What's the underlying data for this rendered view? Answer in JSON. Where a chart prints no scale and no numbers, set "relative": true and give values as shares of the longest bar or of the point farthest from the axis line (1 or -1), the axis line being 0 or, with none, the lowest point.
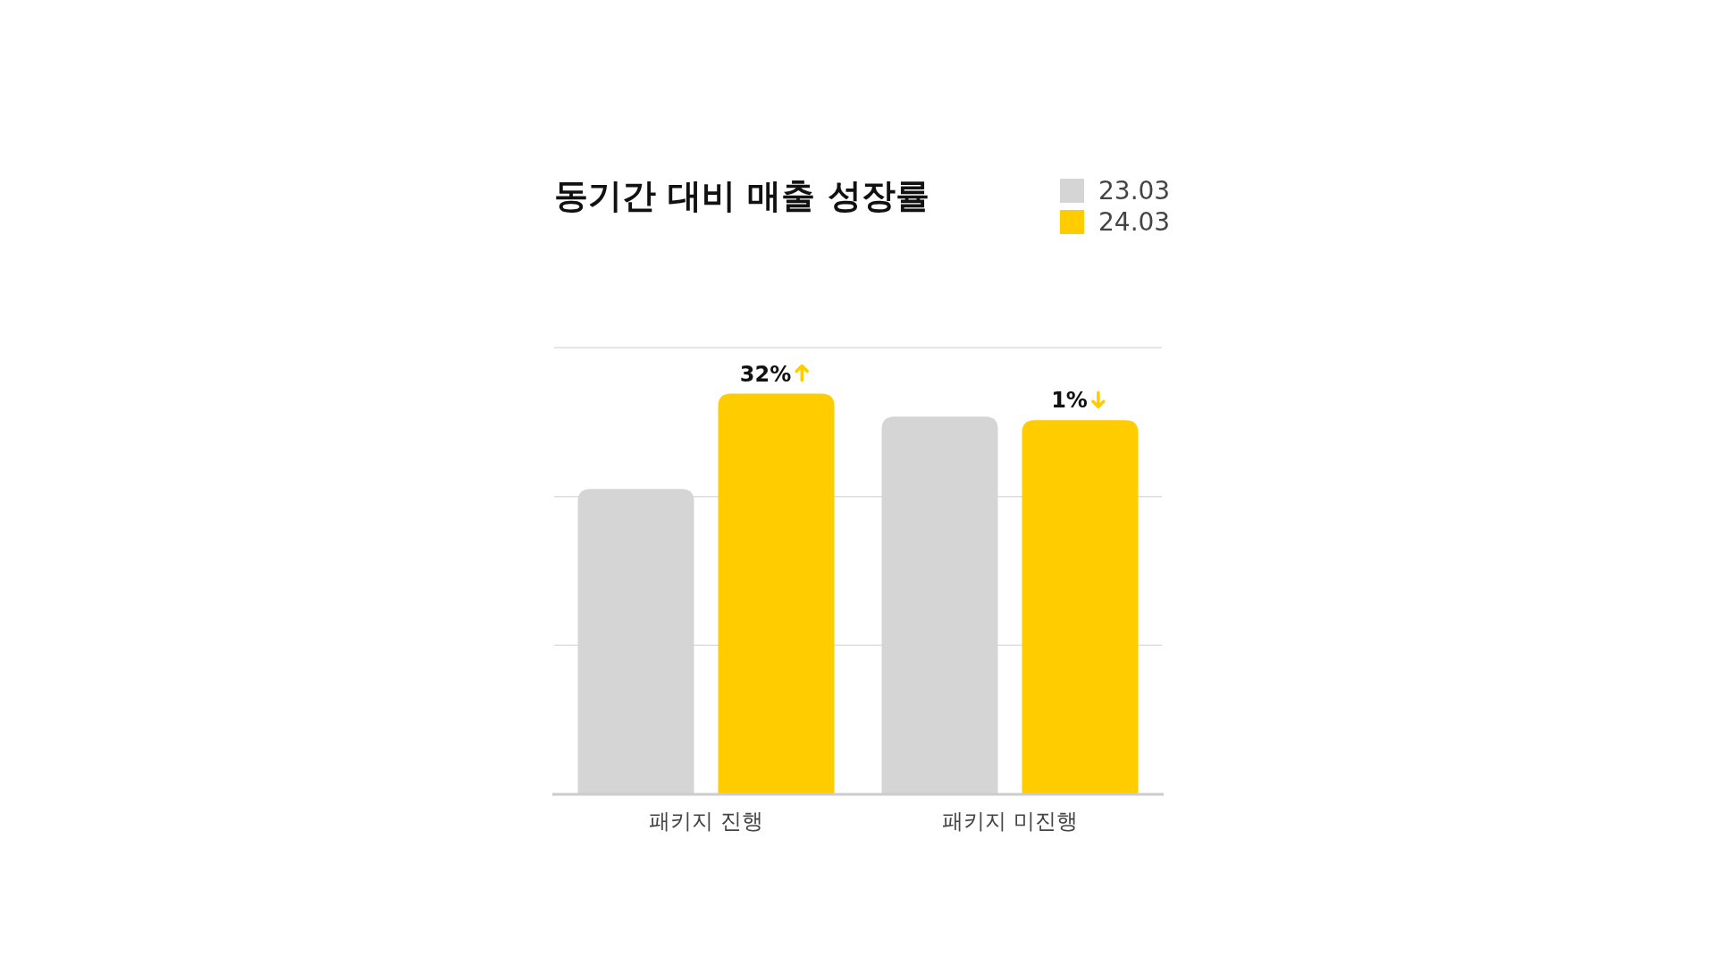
{
  "chart_data": {
    "type": "bar",
    "title": "동기간 대비 매출 성장률",
    "relative": true,
    "ref_lines": [
      {
        "axis": "y",
        "value": 0.372,
        "color": "#dddddd"
      },
      {
        "axis": "y",
        "value": 0.743,
        "color": "#dddddd"
      },
      {
        "axis": "y",
        "value": 1.115,
        "color": "#dddddd"
      }
    ],
    "legend": "top right",
    "categories": [
      "패키지 진행",
      "패키지 미진행"
    ],
    "series": [
      {
        "name": "23.03",
        "color": "#d5d5d5",
        "values": [
          0.762,
          0.943
        ]
      },
      {
        "name": "24.03",
        "color": "#ffcc00",
        "values": [
          1,
          0.934
        ]
      }
    ],
    "annotations": [
      "32%",
      "1%"
    ]
  }
}
